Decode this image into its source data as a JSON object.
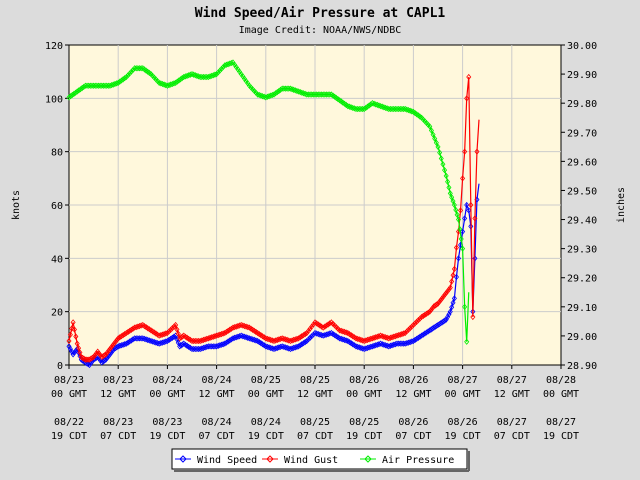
{
  "chart_data": {
    "type": "line",
    "title": "Wind Speed/Air Pressure at CAPL1",
    "subtitle": "Image Credit: NOAA/NWS/NDBC",
    "ylabel_left": "knots",
    "ylabel_right": "inches",
    "ylim_left": [
      0,
      120
    ],
    "ylim_right": [
      28.9,
      30.0
    ],
    "yticks_left": [
      "0",
      "20",
      "40",
      "60",
      "80",
      "100",
      "120"
    ],
    "yticks_right": [
      "28.90",
      "29.00",
      "29.10",
      "29.20",
      "29.30",
      "29.40",
      "29.50",
      "29.60",
      "29.70",
      "29.80",
      "29.90",
      "30.00"
    ],
    "xlim_hours": [
      0,
      120
    ],
    "xticks": [
      {
        "gmt_date": "08/23",
        "gmt_time": "00 GMT",
        "cdt_date": "08/22",
        "cdt_time": "19 CDT"
      },
      {
        "gmt_date": "08/23",
        "gmt_time": "12 GMT",
        "cdt_date": "08/23",
        "cdt_time": "07 CDT"
      },
      {
        "gmt_date": "08/24",
        "gmt_time": "00 GMT",
        "cdt_date": "08/23",
        "cdt_time": "19 CDT"
      },
      {
        "gmt_date": "08/24",
        "gmt_time": "12 GMT",
        "cdt_date": "08/24",
        "cdt_time": "07 CDT"
      },
      {
        "gmt_date": "08/25",
        "gmt_time": "00 GMT",
        "cdt_date": "08/24",
        "cdt_time": "19 CDT"
      },
      {
        "gmt_date": "08/25",
        "gmt_time": "12 GMT",
        "cdt_date": "08/25",
        "cdt_time": "07 CDT"
      },
      {
        "gmt_date": "08/26",
        "gmt_time": "00 GMT",
        "cdt_date": "08/25",
        "cdt_time": "19 CDT"
      },
      {
        "gmt_date": "08/26",
        "gmt_time": "12 GMT",
        "cdt_date": "08/26",
        "cdt_time": "07 CDT"
      },
      {
        "gmt_date": "08/27",
        "gmt_time": "00 GMT",
        "cdt_date": "08/26",
        "cdt_time": "19 CDT"
      },
      {
        "gmt_date": "08/27",
        "gmt_time": "12 GMT",
        "cdt_date": "08/27",
        "cdt_time": "07 CDT"
      },
      {
        "gmt_date": "08/28",
        "gmt_time": "00 GMT",
        "cdt_date": "08/27",
        "cdt_time": "19 CDT"
      }
    ],
    "legend_position": "bottom-center",
    "series": [
      {
        "name": "Wind Speed",
        "axis": "left",
        "color": "#0000ff",
        "marker": "diamond",
        "points": [
          [
            0,
            7
          ],
          [
            1,
            4
          ],
          [
            2,
            6
          ],
          [
            3,
            2
          ],
          [
            4,
            1
          ],
          [
            5,
            0
          ],
          [
            6,
            2
          ],
          [
            7,
            3
          ],
          [
            8,
            1
          ],
          [
            9,
            2
          ],
          [
            10,
            4
          ],
          [
            11,
            6
          ],
          [
            12,
            7
          ],
          [
            14,
            8
          ],
          [
            16,
            10
          ],
          [
            18,
            10
          ],
          [
            20,
            9
          ],
          [
            22,
            8
          ],
          [
            24,
            9
          ],
          [
            26,
            11
          ],
          [
            27,
            7
          ],
          [
            28,
            8
          ],
          [
            30,
            6
          ],
          [
            32,
            6
          ],
          [
            34,
            7
          ],
          [
            36,
            7
          ],
          [
            38,
            8
          ],
          [
            40,
            10
          ],
          [
            42,
            11
          ],
          [
            44,
            10
          ],
          [
            46,
            9
          ],
          [
            48,
            7
          ],
          [
            50,
            6
          ],
          [
            52,
            7
          ],
          [
            54,
            6
          ],
          [
            56,
            7
          ],
          [
            58,
            9
          ],
          [
            60,
            12
          ],
          [
            62,
            11
          ],
          [
            64,
            12
          ],
          [
            66,
            10
          ],
          [
            68,
            9
          ],
          [
            70,
            7
          ],
          [
            72,
            6
          ],
          [
            74,
            7
          ],
          [
            76,
            8
          ],
          [
            78,
            7
          ],
          [
            80,
            8
          ],
          [
            82,
            8
          ],
          [
            84,
            9
          ],
          [
            86,
            11
          ],
          [
            88,
            13
          ],
          [
            89,
            14
          ],
          [
            90,
            15
          ],
          [
            91,
            16
          ],
          [
            92,
            17
          ],
          [
            93,
            20
          ],
          [
            94,
            25
          ],
          [
            94.5,
            33
          ],
          [
            95,
            40
          ],
          [
            95.5,
            45
          ],
          [
            96,
            50
          ],
          [
            96.5,
            55
          ],
          [
            97,
            60
          ],
          [
            97.5,
            58
          ],
          [
            98,
            52
          ],
          [
            98.5,
            20
          ],
          [
            99,
            40
          ],
          [
            99.5,
            62
          ],
          [
            100,
            68
          ]
        ]
      },
      {
        "name": "Wind Gust",
        "axis": "left",
        "color": "#ff0000",
        "marker": "diamond",
        "points": [
          [
            0,
            9
          ],
          [
            1,
            16
          ],
          [
            2,
            8
          ],
          [
            3,
            3
          ],
          [
            4,
            2
          ],
          [
            5,
            2
          ],
          [
            6,
            3
          ],
          [
            7,
            5
          ],
          [
            8,
            3
          ],
          [
            9,
            4
          ],
          [
            10,
            6
          ],
          [
            11,
            8
          ],
          [
            12,
            10
          ],
          [
            14,
            12
          ],
          [
            16,
            14
          ],
          [
            18,
            15
          ],
          [
            20,
            13
          ],
          [
            22,
            11
          ],
          [
            24,
            12
          ],
          [
            26,
            15
          ],
          [
            27,
            10
          ],
          [
            28,
            11
          ],
          [
            30,
            9
          ],
          [
            32,
            9
          ],
          [
            34,
            10
          ],
          [
            36,
            11
          ],
          [
            38,
            12
          ],
          [
            40,
            14
          ],
          [
            42,
            15
          ],
          [
            44,
            14
          ],
          [
            46,
            12
          ],
          [
            48,
            10
          ],
          [
            50,
            9
          ],
          [
            52,
            10
          ],
          [
            54,
            9
          ],
          [
            56,
            10
          ],
          [
            58,
            12
          ],
          [
            60,
            16
          ],
          [
            62,
            14
          ],
          [
            64,
            16
          ],
          [
            66,
            13
          ],
          [
            68,
            12
          ],
          [
            70,
            10
          ],
          [
            72,
            9
          ],
          [
            74,
            10
          ],
          [
            76,
            11
          ],
          [
            78,
            10
          ],
          [
            80,
            11
          ],
          [
            82,
            12
          ],
          [
            84,
            15
          ],
          [
            86,
            18
          ],
          [
            88,
            20
          ],
          [
            89,
            22
          ],
          [
            90,
            23
          ],
          [
            91,
            25
          ],
          [
            92,
            27
          ],
          [
            93,
            29
          ],
          [
            94,
            36
          ],
          [
            94.5,
            44
          ],
          [
            95,
            50
          ],
          [
            95.5,
            58
          ],
          [
            96,
            70
          ],
          [
            96.5,
            80
          ],
          [
            97,
            100
          ],
          [
            97.5,
            108
          ],
          [
            98,
            60
          ],
          [
            98.5,
            18
          ],
          [
            99,
            55
          ],
          [
            99.5,
            80
          ],
          [
            100,
            92
          ]
        ]
      },
      {
        "name": "Air Pressure",
        "axis": "right",
        "color": "#00ee00",
        "marker": "diamond",
        "points": [
          [
            0,
            29.82
          ],
          [
            2,
            29.84
          ],
          [
            4,
            29.86
          ],
          [
            6,
            29.86
          ],
          [
            8,
            29.86
          ],
          [
            10,
            29.86
          ],
          [
            12,
            29.87
          ],
          [
            14,
            29.89
          ],
          [
            16,
            29.92
          ],
          [
            18,
            29.92
          ],
          [
            20,
            29.9
          ],
          [
            22,
            29.87
          ],
          [
            24,
            29.86
          ],
          [
            26,
            29.87
          ],
          [
            28,
            29.89
          ],
          [
            30,
            29.9
          ],
          [
            32,
            29.89
          ],
          [
            34,
            29.89
          ],
          [
            36,
            29.9
          ],
          [
            38,
            29.93
          ],
          [
            40,
            29.94
          ],
          [
            42,
            29.9
          ],
          [
            44,
            29.86
          ],
          [
            46,
            29.83
          ],
          [
            48,
            29.82
          ],
          [
            50,
            29.83
          ],
          [
            52,
            29.85
          ],
          [
            54,
            29.85
          ],
          [
            56,
            29.84
          ],
          [
            58,
            29.83
          ],
          [
            60,
            29.83
          ],
          [
            62,
            29.83
          ],
          [
            64,
            29.83
          ],
          [
            66,
            29.81
          ],
          [
            68,
            29.79
          ],
          [
            70,
            29.78
          ],
          [
            72,
            29.78
          ],
          [
            74,
            29.8
          ],
          [
            76,
            29.79
          ],
          [
            78,
            29.78
          ],
          [
            80,
            29.78
          ],
          [
            82,
            29.78
          ],
          [
            84,
            29.77
          ],
          [
            86,
            29.75
          ],
          [
            88,
            29.72
          ],
          [
            90,
            29.65
          ],
          [
            92,
            29.55
          ],
          [
            93,
            29.49
          ],
          [
            94,
            29.45
          ],
          [
            95,
            29.4
          ],
          [
            96,
            29.3
          ],
          [
            96.5,
            29.1
          ],
          [
            97,
            28.98
          ],
          [
            97.5,
            29.15
          ]
        ]
      }
    ]
  }
}
